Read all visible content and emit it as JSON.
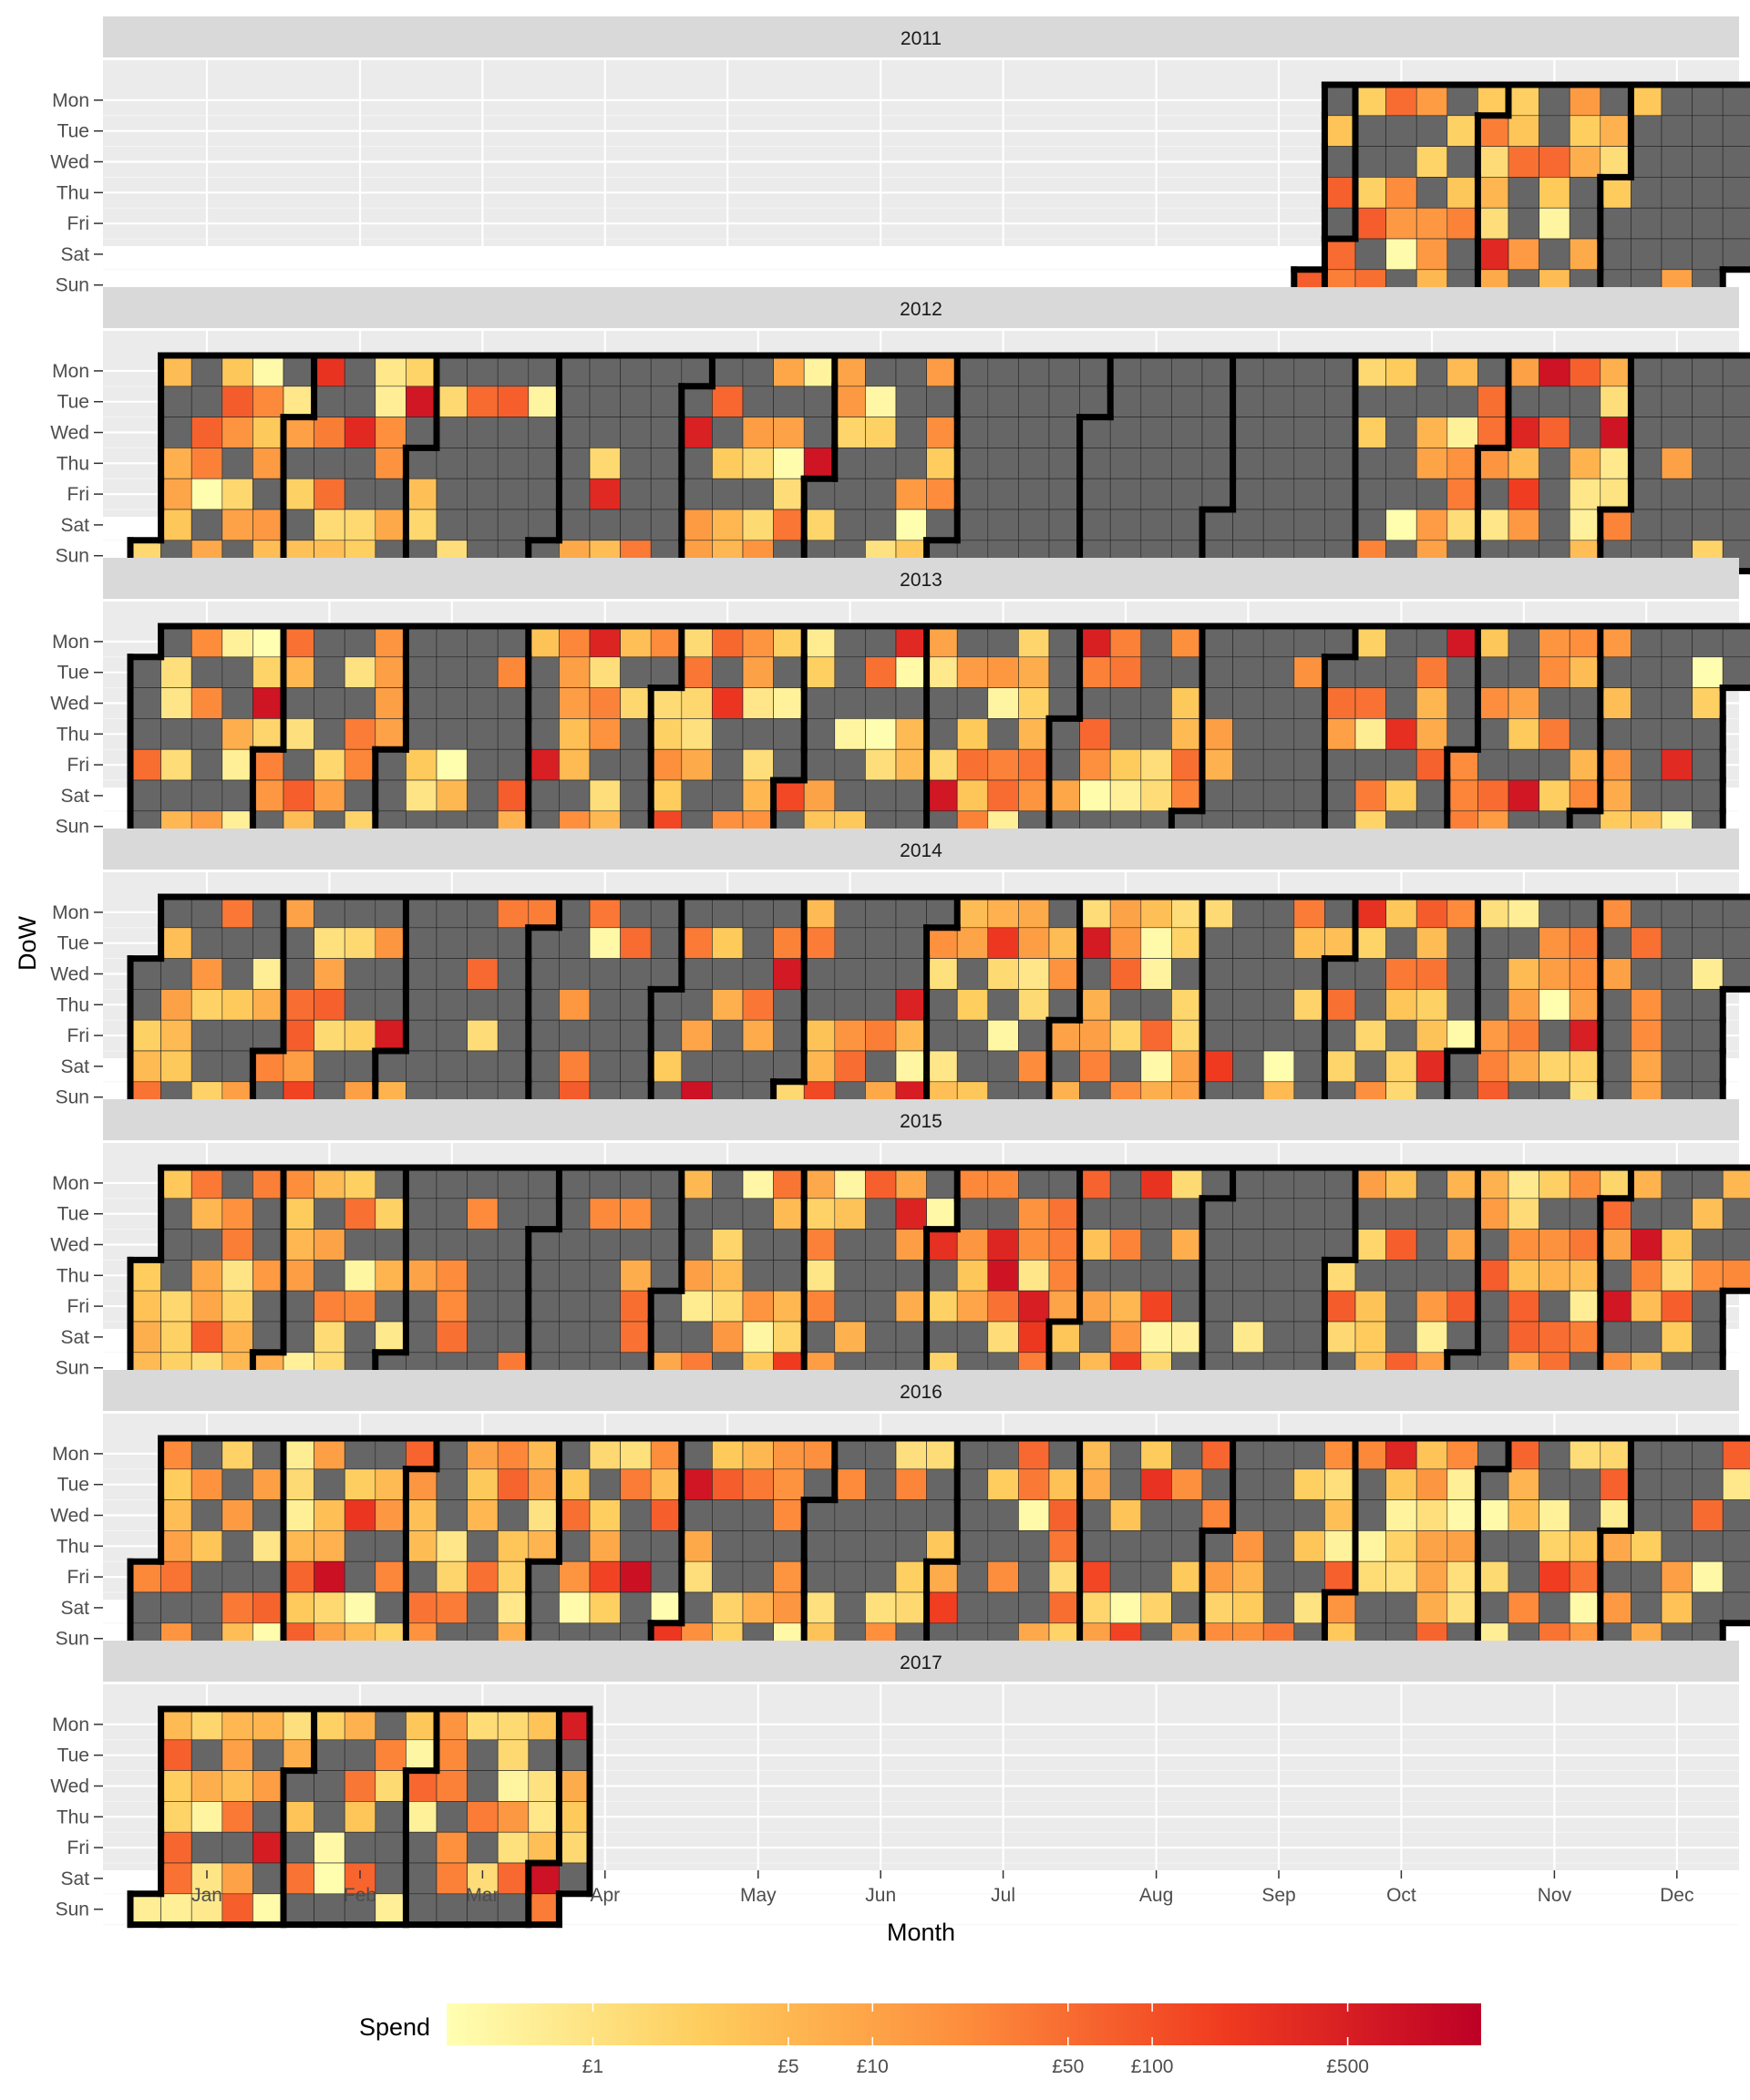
{
  "chart_data": {
    "type": "heatmap",
    "subtype": "calendar",
    "xlabel": "Month",
    "ylabel": "DoW",
    "months": [
      "Jan",
      "Feb",
      "Mar",
      "Apr",
      "May",
      "Jun",
      "Jul",
      "Aug",
      "Sep",
      "Oct",
      "Nov",
      "Dec"
    ],
    "days": [
      "Mon",
      "Tue",
      "Wed",
      "Thu",
      "Fri",
      "Sat",
      "Sun"
    ],
    "years": [
      "2011",
      "2012",
      "2013",
      "2014",
      "2015",
      "2016",
      "2017"
    ],
    "data_start": "2011-09-25",
    "data_end": "2017-04-08",
    "no_spend_color": "#666666",
    "legend": {
      "title": "Spend",
      "position": "bottom",
      "scale": "log",
      "ticks": [
        "£1",
        "£5",
        "£10",
        "£50",
        "£100",
        "£500"
      ],
      "tick_values": [
        1,
        5,
        10,
        50,
        100,
        500
      ],
      "range": [
        0.3,
        1500
      ],
      "palette": [
        "#FFFFB2",
        "#FECC5C",
        "#FD8D3C",
        "#F03B20",
        "#BD0026"
      ]
    },
    "spend_intensity_by_month": {
      "2011-09": 0.55,
      "2011-10": 0.65,
      "2011-11": 0.5,
      "2011-12": 0.15,
      "2012-01": 0.55,
      "2012-02": 0.55,
      "2012-03": 0.25,
      "2012-04": 0.15,
      "2012-05": 0.55,
      "2012-06": 0.45,
      "2012-07": 0.0,
      "2012-08": 0.0,
      "2012-09": 0.02,
      "2012-10": 0.65,
      "2012-11": 0.6,
      "2012-12": 0.15,
      "2013-01": 0.6,
      "2013-02": 0.6,
      "2013-03": 0.15,
      "2013-04": 0.45,
      "2013-05": 0.6,
      "2013-06": 0.5,
      "2013-07": 0.65,
      "2013-08": 0.5,
      "2013-09": 0.1,
      "2013-10": 0.45,
      "2013-11": 0.55,
      "2013-12": 0.3,
      "2014-01": 0.55,
      "2014-02": 0.5,
      "2014-03": 0.2,
      "2014-04": 0.25,
      "2014-05": 0.45,
      "2014-06": 0.5,
      "2014-07": 0.55,
      "2014-08": 0.65,
      "2014-09": 0.3,
      "2014-10": 0.6,
      "2014-11": 0.6,
      "2014-12": 0.3,
      "2015-01": 0.55,
      "2015-02": 0.55,
      "2015-03": 0.3,
      "2015-04": 0.35,
      "2015-05": 0.6,
      "2015-06": 0.65,
      "2015-07": 0.7,
      "2015-08": 0.6,
      "2015-09": 0.05,
      "2015-10": 0.65,
      "2015-11": 0.6,
      "2015-12": 0.55,
      "2016-01": 0.6,
      "2016-02": 0.6,
      "2016-03": 0.6,
      "2016-04": 0.55,
      "2016-05": 0.65,
      "2016-06": 0.4,
      "2016-07": 0.5,
      "2016-08": 0.55,
      "2016-09": 0.7,
      "2016-10": 0.7,
      "2016-11": 0.7,
      "2016-12": 0.25,
      "2017-01": 0.65,
      "2017-02": 0.65,
      "2017-03": 0.65,
      "2017-04": 0.6
    },
    "grid": true
  }
}
